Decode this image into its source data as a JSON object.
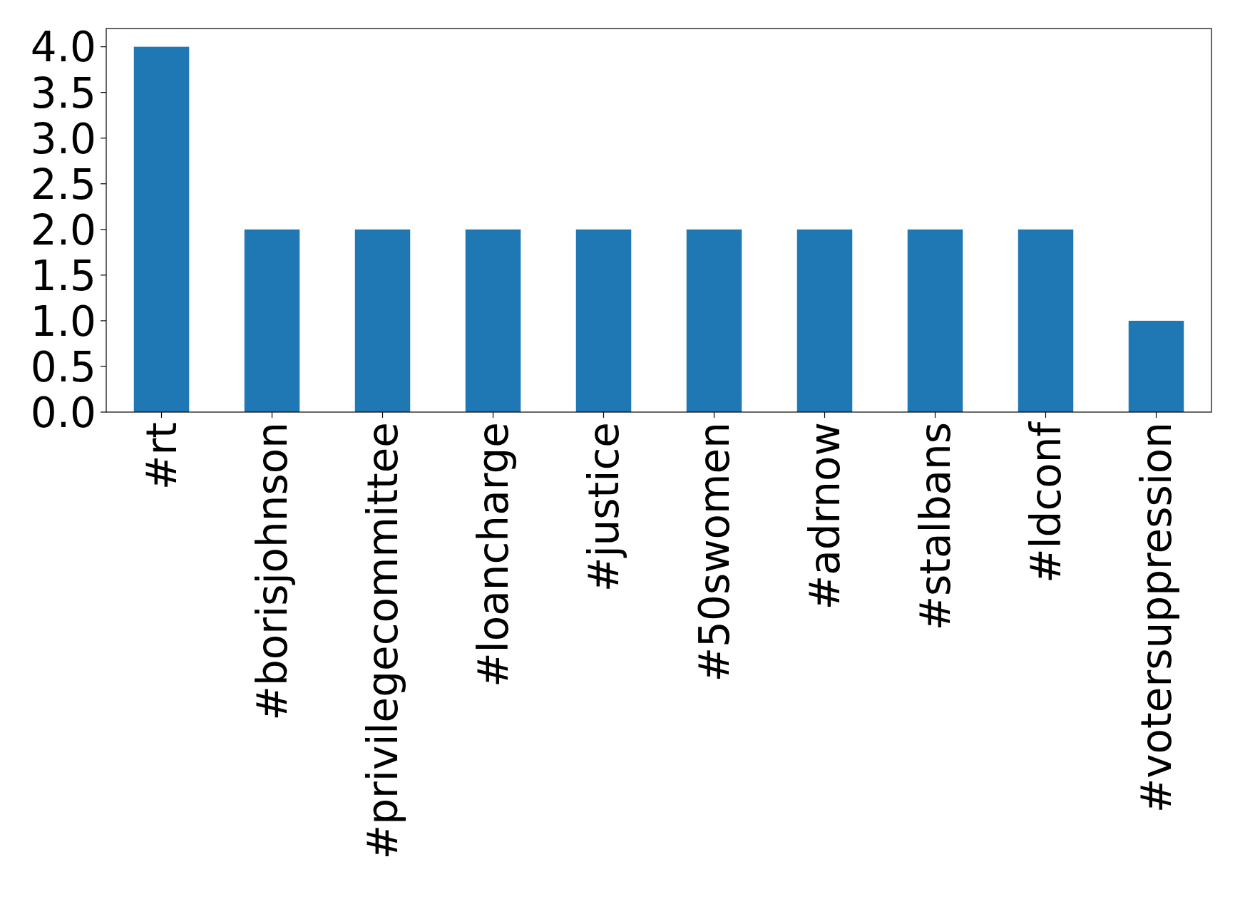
{
  "chart_data": {
    "type": "bar",
    "categories": [
      "#rt",
      "#borisjohnson",
      "#privilegecommittee",
      "#loancharge",
      "#justice",
      "#50swomen",
      "#adrnow",
      "#stalbans",
      "#ldconf",
      "#votersuppression"
    ],
    "values": [
      4,
      2,
      2,
      2,
      2,
      2,
      2,
      2,
      2,
      1
    ],
    "color": "#1f77b4",
    "ylim": [
      0,
      4.2
    ],
    "yticks": [
      {
        "value": 0,
        "label": "0.0"
      },
      {
        "value": 0.5,
        "label": "0.5"
      },
      {
        "value": 1,
        "label": "1.0"
      },
      {
        "value": 1.5,
        "label": "1.5"
      },
      {
        "value": 2,
        "label": "2.0"
      },
      {
        "value": 2.5,
        "label": "2.5"
      },
      {
        "value": 3,
        "label": "3.0"
      },
      {
        "value": 3.5,
        "label": "3.5"
      },
      {
        "value": 4,
        "label": "4.0"
      }
    ],
    "grid": false
  }
}
